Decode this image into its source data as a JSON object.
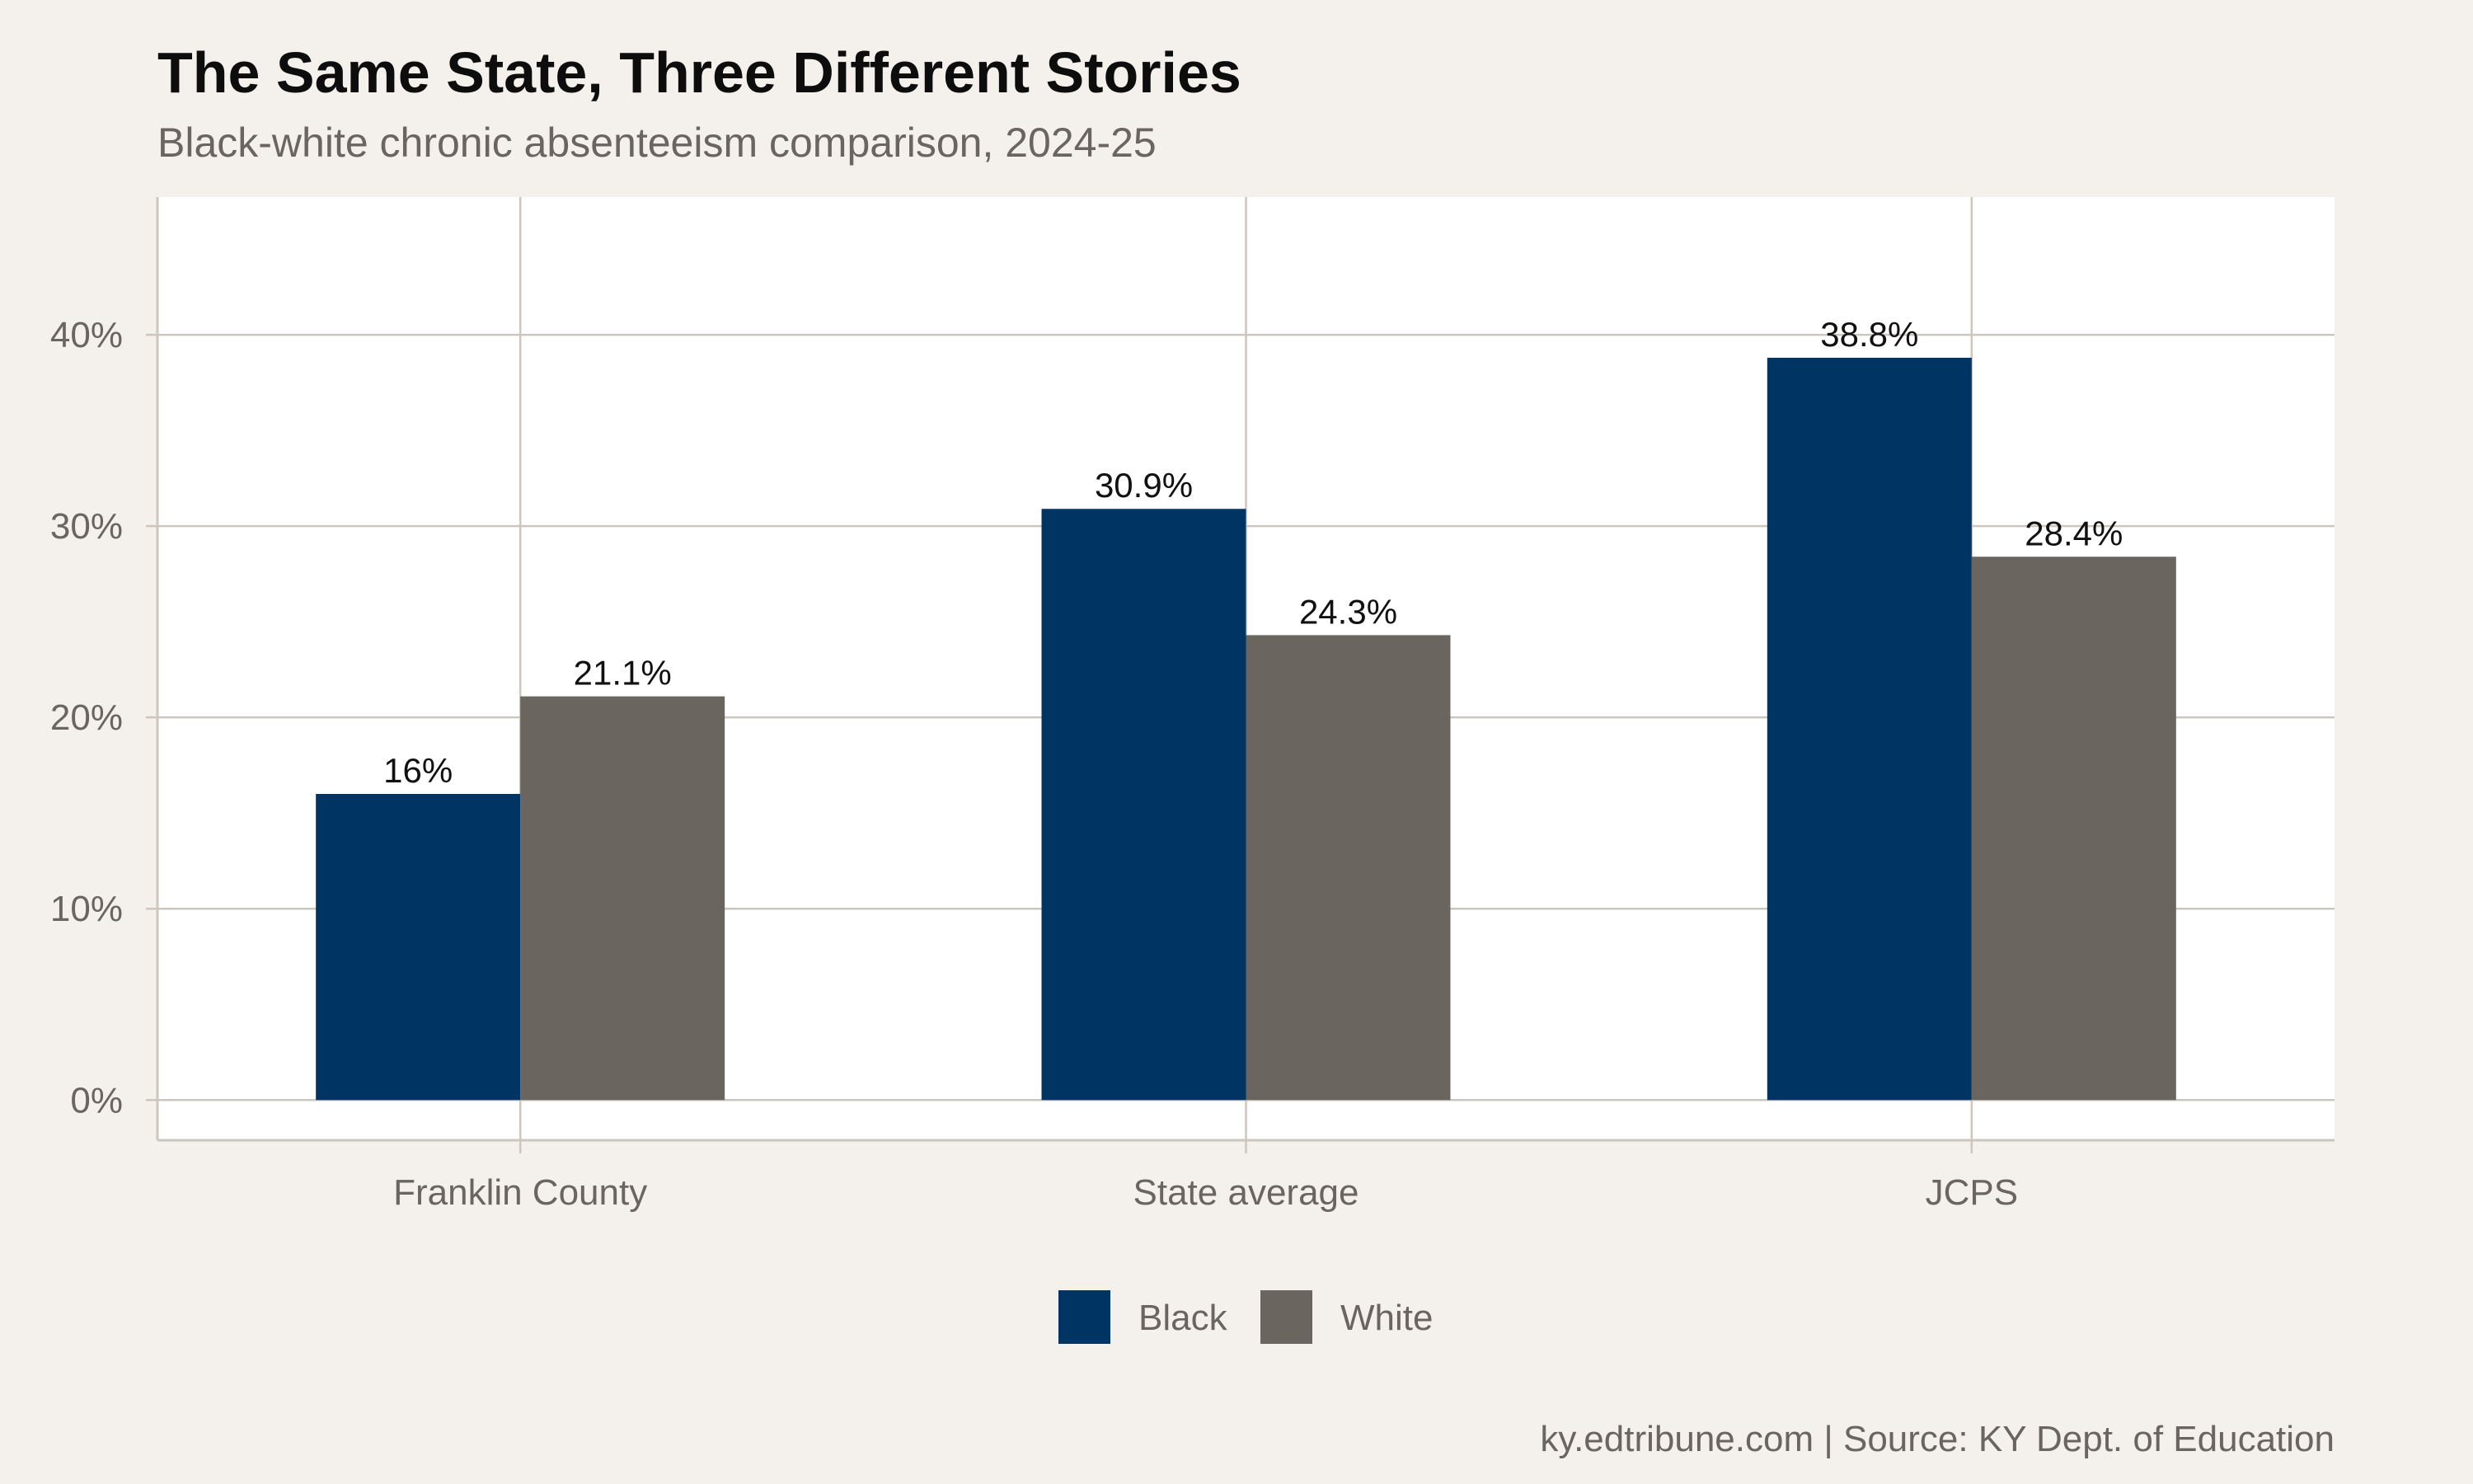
{
  "chart_data": {
    "type": "bar",
    "title": "The Same State, Three Different Stories",
    "subtitle": "Black-white chronic absenteeism comparison, 2024-25",
    "caption": "ky.edtribune.com | Source: KY Dept. of Education",
    "categories": [
      "Franklin County",
      "State average",
      "JCPS"
    ],
    "series": [
      {
        "name": "Black",
        "color": "#003462",
        "values": [
          16,
          30.9,
          38.8
        ],
        "labels": [
          "16%",
          "30.9%",
          "38.8%"
        ]
      },
      {
        "name": "White",
        "color": "#6a655e",
        "values": [
          21.1,
          24.3,
          28.4
        ],
        "labels": [
          "21.1%",
          "24.3%",
          "28.4%"
        ]
      }
    ],
    "ylim": [
      -2.1,
      47.2
    ],
    "yticks": [
      0,
      10,
      20,
      30,
      40
    ],
    "ytick_labels": [
      "0%",
      "10%",
      "20%",
      "30%",
      "40%"
    ],
    "xlabel": "",
    "ylabel": "",
    "grid": true,
    "legend_position": "bottom",
    "colors": {
      "background": "#f4f1ec",
      "panel": "#ffffff",
      "grid": "#cdc6bc",
      "text": "#6b6560"
    }
  }
}
